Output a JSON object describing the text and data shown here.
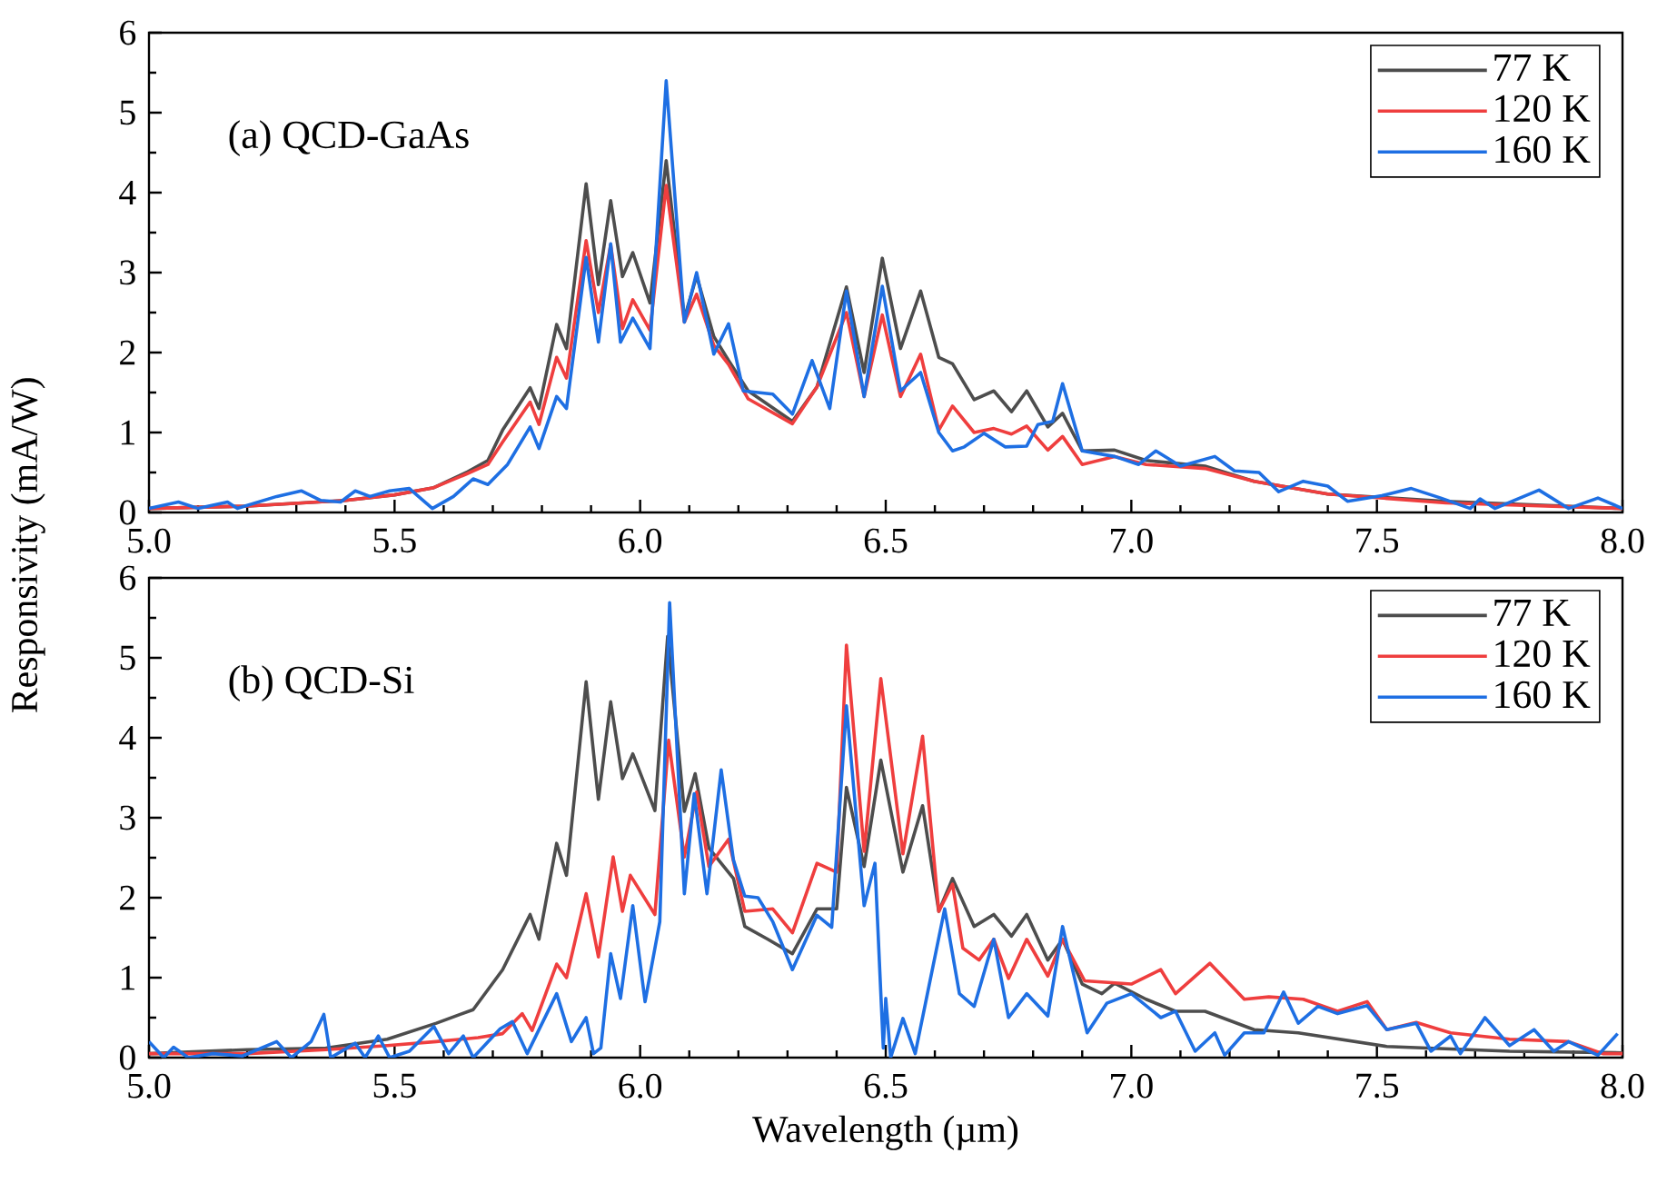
{
  "chart_data": [
    {
      "type": "line",
      "ylabel": "Responsivity (mA/W)",
      "annotations": [
        "(a) QCD-GaAs"
      ],
      "xlim": [
        5,
        8
      ],
      "ylim": [
        0,
        6
      ],
      "xticks": [
        {
          "value": 5,
          "label": "5.0"
        },
        {
          "value": 5.5,
          "label": "5.5"
        },
        {
          "value": 6,
          "label": "6.0"
        },
        {
          "value": 6.5,
          "label": "6.5"
        },
        {
          "value": 7,
          "label": "7.0"
        },
        {
          "value": 7.5,
          "label": "7.5"
        },
        {
          "value": 8,
          "label": "8.0"
        }
      ],
      "yticks": [
        0,
        1,
        2,
        3,
        4,
        5,
        6
      ],
      "legend": "top right",
      "line_style": "solid",
      "series": [
        {
          "name": "77 K",
          "color": "#4d4d4d",
          "x": [
            5.0,
            5.2,
            5.4,
            5.5,
            5.58,
            5.646,
            5.69,
            5.72,
            5.776,
            5.794,
            5.83,
            5.85,
            5.89,
            5.915,
            5.94,
            5.964,
            5.985,
            6.02,
            6.053,
            6.09,
            6.115,
            6.15,
            6.18,
            6.22,
            6.31,
            6.36,
            6.42,
            6.456,
            6.493,
            6.53,
            6.571,
            6.608,
            6.636,
            6.68,
            6.72,
            6.756,
            6.787,
            6.83,
            6.86,
            6.9,
            6.966,
            7.03,
            7.15,
            7.25,
            7.4,
            7.64,
            8.0
          ],
          "values": [
            0.05,
            0.08,
            0.15,
            0.22,
            0.31,
            0.5,
            0.65,
            1.03,
            1.56,
            1.3,
            2.35,
            2.05,
            4.11,
            2.85,
            3.9,
            2.95,
            3.25,
            2.62,
            4.4,
            2.43,
            2.96,
            2.2,
            1.9,
            1.52,
            1.14,
            1.57,
            2.82,
            1.75,
            3.18,
            2.05,
            2.77,
            1.94,
            1.86,
            1.41,
            1.52,
            1.26,
            1.52,
            1.07,
            1.24,
            0.77,
            0.78,
            0.65,
            0.58,
            0.39,
            0.23,
            0.14,
            0.05
          ]
        },
        {
          "name": "120 K",
          "color": "#ef3e3e",
          "x": [
            5.0,
            5.2,
            5.4,
            5.5,
            5.58,
            5.646,
            5.69,
            5.72,
            5.776,
            5.794,
            5.83,
            5.85,
            5.89,
            5.915,
            5.94,
            5.964,
            5.985,
            6.02,
            6.053,
            6.09,
            6.115,
            6.15,
            6.18,
            6.22,
            6.31,
            6.36,
            6.42,
            6.456,
            6.493,
            6.53,
            6.571,
            6.608,
            6.636,
            6.68,
            6.72,
            6.756,
            6.787,
            6.83,
            6.86,
            6.9,
            6.966,
            7.03,
            7.15,
            7.25,
            7.4,
            7.64,
            8.0
          ],
          "values": [
            0.05,
            0.08,
            0.15,
            0.22,
            0.31,
            0.48,
            0.6,
            0.88,
            1.38,
            1.1,
            1.94,
            1.68,
            3.4,
            2.5,
            3.35,
            2.3,
            2.66,
            2.28,
            4.09,
            2.38,
            2.73,
            2.09,
            1.85,
            1.42,
            1.11,
            1.57,
            2.5,
            1.45,
            2.47,
            1.45,
            1.98,
            1.03,
            1.33,
            1.0,
            1.05,
            0.98,
            1.08,
            0.78,
            0.95,
            0.6,
            0.7,
            0.6,
            0.55,
            0.39,
            0.23,
            0.12,
            0.05
          ]
        },
        {
          "name": "160 K",
          "color": "#1e6fe3",
          "x": [
            5.0,
            5.06,
            5.1,
            5.16,
            5.18,
            5.26,
            5.31,
            5.35,
            5.39,
            5.42,
            5.45,
            5.49,
            5.53,
            5.577,
            5.62,
            5.66,
            5.69,
            5.73,
            5.776,
            5.794,
            5.83,
            5.85,
            5.89,
            5.915,
            5.94,
            5.96,
            5.985,
            6.02,
            6.053,
            6.09,
            6.115,
            6.15,
            6.18,
            6.21,
            6.27,
            6.31,
            6.35,
            6.386,
            6.42,
            6.456,
            6.493,
            6.53,
            6.571,
            6.608,
            6.636,
            6.66,
            6.7,
            6.743,
            6.787,
            6.81,
            6.84,
            6.86,
            6.9,
            6.966,
            7.015,
            7.05,
            7.1,
            7.17,
            7.21,
            7.26,
            7.3,
            7.35,
            7.4,
            7.44,
            7.51,
            7.57,
            7.63,
            7.69,
            7.71,
            7.74,
            7.83,
            7.89,
            7.95,
            8.0
          ],
          "values": [
            0.05,
            0.13,
            0.05,
            0.13,
            0.05,
            0.2,
            0.27,
            0.15,
            0.13,
            0.27,
            0.2,
            0.27,
            0.3,
            0.05,
            0.2,
            0.42,
            0.35,
            0.6,
            1.07,
            0.8,
            1.45,
            1.3,
            3.19,
            2.13,
            3.36,
            2.13,
            2.43,
            2.05,
            5.4,
            2.38,
            3.0,
            1.98,
            2.36,
            1.52,
            1.48,
            1.23,
            1.9,
            1.3,
            2.77,
            1.45,
            2.83,
            1.52,
            1.75,
            1.0,
            0.77,
            0.82,
            0.99,
            0.82,
            0.83,
            1.1,
            1.14,
            1.61,
            0.77,
            0.7,
            0.6,
            0.77,
            0.58,
            0.7,
            0.52,
            0.5,
            0.26,
            0.39,
            0.33,
            0.14,
            0.21,
            0.3,
            0.18,
            0.05,
            0.17,
            0.05,
            0.28,
            0.05,
            0.18,
            0.05
          ]
        }
      ]
    },
    {
      "type": "line",
      "xlabel": "Wavelength (µm)",
      "annotations": [
        "(b) QCD-Si"
      ],
      "xlim": [
        5,
        8
      ],
      "ylim": [
        0,
        6
      ],
      "xticks": [
        {
          "value": 5,
          "label": "5.0"
        },
        {
          "value": 5.5,
          "label": "5.5"
        },
        {
          "value": 6,
          "label": "6.0"
        },
        {
          "value": 6.5,
          "label": "6.5"
        },
        {
          "value": 7,
          "label": "7.0"
        },
        {
          "value": 7.5,
          "label": "7.5"
        },
        {
          "value": 8,
          "label": "8.0"
        }
      ],
      "yticks": [
        0,
        1,
        2,
        3,
        4,
        5,
        6
      ],
      "legend": "top right",
      "line_style": "solid",
      "series": [
        {
          "name": "77 K",
          "color": "#4d4d4d",
          "x": [
            5.0,
            5.2,
            5.36,
            5.485,
            5.585,
            5.66,
            5.72,
            5.776,
            5.794,
            5.83,
            5.85,
            5.89,
            5.915,
            5.94,
            5.964,
            5.985,
            6.03,
            6.056,
            6.09,
            6.112,
            6.14,
            6.19,
            6.213,
            6.26,
            6.31,
            6.36,
            6.4,
            6.42,
            6.456,
            6.49,
            6.535,
            6.575,
            6.608,
            6.636,
            6.68,
            6.72,
            6.756,
            6.787,
            6.83,
            6.86,
            6.9,
            6.94,
            6.966,
            7.03,
            7.09,
            7.15,
            7.25,
            7.34,
            7.52,
            7.77,
            8.0
          ],
          "values": [
            0.05,
            0.1,
            0.12,
            0.23,
            0.43,
            0.6,
            1.1,
            1.79,
            1.48,
            2.68,
            2.28,
            4.7,
            3.23,
            4.45,
            3.49,
            3.8,
            3.09,
            5.27,
            3.08,
            3.55,
            2.62,
            2.24,
            1.64,
            1.48,
            1.3,
            1.86,
            1.86,
            3.38,
            2.39,
            3.72,
            2.32,
            3.15,
            1.83,
            2.24,
            1.64,
            1.79,
            1.52,
            1.79,
            1.22,
            1.48,
            0.92,
            0.8,
            0.93,
            0.73,
            0.58,
            0.58,
            0.35,
            0.31,
            0.14,
            0.08,
            0.06
          ]
        },
        {
          "name": "120 K",
          "color": "#ef3e3e",
          "x": [
            5.0,
            5.2,
            5.36,
            5.485,
            5.585,
            5.67,
            5.72,
            5.76,
            5.78,
            5.83,
            5.85,
            5.89,
            5.915,
            5.945,
            5.964,
            5.98,
            6.03,
            6.058,
            6.09,
            6.115,
            6.14,
            6.18,
            6.213,
            6.27,
            6.31,
            6.36,
            6.4,
            6.42,
            6.456,
            6.49,
            6.535,
            6.575,
            6.608,
            6.636,
            6.657,
            6.69,
            6.72,
            6.75,
            6.787,
            6.83,
            6.86,
            6.905,
            7.0,
            7.06,
            7.09,
            7.16,
            7.23,
            7.28,
            7.35,
            7.42,
            7.48,
            7.52,
            7.58,
            7.65,
            7.77,
            7.89,
            7.96,
            8.0
          ],
          "values": [
            0.05,
            0.05,
            0.1,
            0.15,
            0.2,
            0.25,
            0.3,
            0.55,
            0.34,
            1.17,
            1.0,
            2.05,
            1.26,
            2.51,
            1.83,
            2.28,
            1.79,
            3.97,
            2.51,
            3.32,
            2.39,
            2.73,
            1.83,
            1.86,
            1.56,
            2.43,
            2.32,
            5.16,
            2.58,
            4.74,
            2.55,
            4.02,
            1.83,
            2.17,
            1.37,
            1.22,
            1.48,
            0.99,
            1.48,
            1.02,
            1.48,
            0.96,
            0.92,
            1.1,
            0.8,
            1.18,
            0.73,
            0.76,
            0.73,
            0.58,
            0.7,
            0.35,
            0.44,
            0.31,
            0.23,
            0.2,
            0.05,
            0.05
          ]
        },
        {
          "name": "160 K",
          "color": "#1e6fe3",
          "x": [
            5.0,
            5.03,
            5.05,
            5.08,
            5.13,
            5.19,
            5.26,
            5.29,
            5.33,
            5.356,
            5.37,
            5.42,
            5.44,
            5.467,
            5.49,
            5.53,
            5.58,
            5.61,
            5.64,
            5.66,
            5.715,
            5.74,
            5.77,
            5.83,
            5.86,
            5.89,
            5.905,
            5.92,
            5.94,
            5.96,
            5.985,
            6.01,
            6.04,
            6.06,
            6.09,
            6.11,
            6.136,
            6.165,
            6.19,
            6.213,
            6.24,
            6.27,
            6.31,
            6.36,
            6.39,
            6.42,
            6.456,
            6.478,
            6.495,
            6.5,
            6.51,
            6.535,
            6.56,
            6.62,
            6.65,
            6.68,
            6.72,
            6.75,
            6.787,
            6.83,
            6.86,
            6.91,
            6.95,
            7.0,
            7.06,
            7.09,
            7.13,
            7.17,
            7.19,
            7.23,
            7.27,
            7.31,
            7.34,
            7.38,
            7.42,
            7.48,
            7.52,
            7.58,
            7.61,
            7.65,
            7.67,
            7.72,
            7.77,
            7.82,
            7.86,
            7.89,
            7.95,
            7.99
          ],
          "values": [
            0.2,
            0.0,
            0.13,
            0.0,
            0.05,
            0.02,
            0.2,
            0.0,
            0.2,
            0.54,
            0.0,
            0.18,
            0.0,
            0.27,
            0.0,
            0.08,
            0.39,
            0.05,
            0.27,
            0.0,
            0.36,
            0.45,
            0.05,
            0.8,
            0.2,
            0.5,
            0.05,
            0.12,
            1.3,
            0.74,
            1.9,
            0.7,
            1.7,
            5.69,
            2.05,
            3.3,
            2.05,
            3.6,
            2.47,
            2.02,
            2.0,
            1.7,
            1.1,
            1.78,
            1.63,
            4.4,
            1.9,
            2.43,
            0.12,
            0.74,
            0.0,
            0.49,
            0.05,
            1.86,
            0.8,
            0.64,
            1.48,
            0.5,
            0.8,
            0.52,
            1.64,
            0.31,
            0.68,
            0.8,
            0.5,
            0.58,
            0.08,
            0.31,
            0.03,
            0.31,
            0.31,
            0.82,
            0.43,
            0.64,
            0.55,
            0.65,
            0.35,
            0.43,
            0.08,
            0.27,
            0.05,
            0.5,
            0.15,
            0.35,
            0.08,
            0.2,
            0.03,
            0.3
          ]
        }
      ]
    }
  ]
}
